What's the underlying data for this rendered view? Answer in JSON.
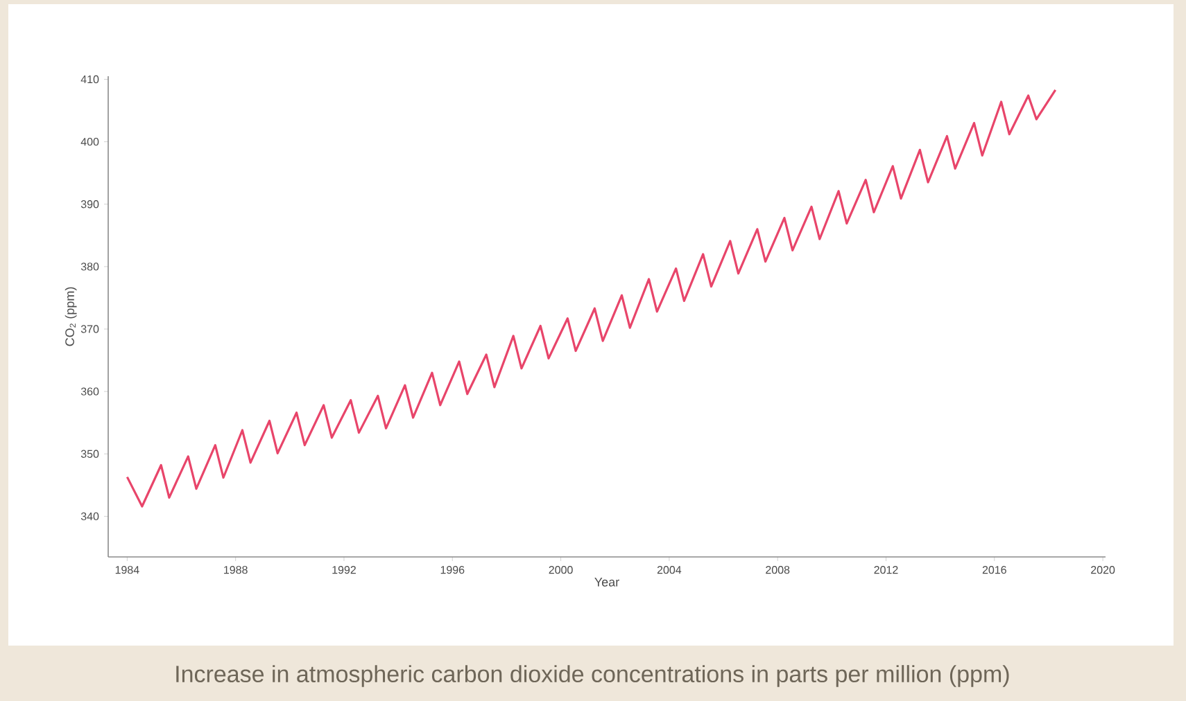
{
  "chart_data": {
    "type": "line",
    "xlabel": "Year",
    "ylabel": "CO$_{2}$ (ppm)",
    "annotations": [
      "Increase in atmospheric carbon dioxide concentrations in parts per million (ppm)"
    ],
    "xlim": [
      1983.3,
      2020.1
    ],
    "ylim": [
      333.5,
      410.5
    ],
    "xticks": [
      1984,
      1988,
      1992,
      1996,
      2000,
      2004,
      2008,
      2012,
      2016,
      2020
    ],
    "yticks": [
      340,
      350,
      360,
      370,
      380,
      390,
      400,
      410
    ],
    "line_style": "solid",
    "series": [
      {
        "color": "#e8456a",
        "x": [
          1984,
          1984.55,
          1985.25,
          1985.55,
          1986.25,
          1986.55,
          1987.25,
          1987.55,
          1988.25,
          1988.55,
          1989.25,
          1989.55,
          1990.25,
          1990.55,
          1991.25,
          1991.55,
          1992.25,
          1992.55,
          1993.25,
          1993.55,
          1994.25,
          1994.55,
          1995.25,
          1995.55,
          1996.25,
          1996.55,
          1997.25,
          1997.55,
          1998.25,
          1998.55,
          1999.25,
          1999.55,
          2000.25,
          2000.55,
          2001.25,
          2001.55,
          2002.25,
          2002.55,
          2003.25,
          2003.55,
          2004.25,
          2004.55,
          2005.25,
          2005.55,
          2006.25,
          2006.55,
          2007.25,
          2007.55,
          2008.25,
          2008.55,
          2009.25,
          2009.55,
          2010.25,
          2010.55,
          2011.25,
          2011.55,
          2012.25,
          2012.55,
          2013.25,
          2013.55,
          2014.25,
          2014.55,
          2015.25,
          2015.55,
          2016.25,
          2016.55,
          2017.25,
          2017.55,
          2018.25
        ],
        "values": [
          346.3,
          341.6,
          348.2,
          343.0,
          349.6,
          344.4,
          351.4,
          346.2,
          353.8,
          348.6,
          355.3,
          350.1,
          356.6,
          351.4,
          357.8,
          352.6,
          358.6,
          353.4,
          359.3,
          354.1,
          361.0,
          355.8,
          363.0,
          357.8,
          364.8,
          359.6,
          365.9,
          360.7,
          368.9,
          363.7,
          370.5,
          365.3,
          371.7,
          366.5,
          373.3,
          368.1,
          375.4,
          370.2,
          378.0,
          372.8,
          379.7,
          374.5,
          382.0,
          376.8,
          384.1,
          378.9,
          386.0,
          380.8,
          387.8,
          382.6,
          389.6,
          384.4,
          392.1,
          386.9,
          393.9,
          388.7,
          396.1,
          390.9,
          398.7,
          393.5,
          400.9,
          395.7,
          403.0,
          397.8,
          406.4,
          401.2,
          407.4,
          403.6,
          408.3
        ]
      }
    ]
  }
}
